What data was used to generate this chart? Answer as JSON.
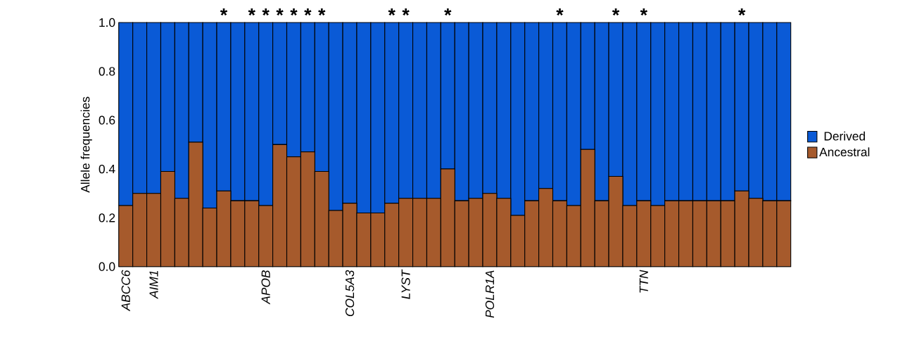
{
  "chart_data": {
    "type": "bar",
    "stacked": true,
    "ylabel": "Allele frequencies",
    "categories": [
      "ABCC6",
      null,
      "AIM1",
      null,
      null,
      null,
      null,
      null,
      null,
      null,
      "APOB",
      null,
      null,
      null,
      null,
      null,
      "COL5A3",
      null,
      null,
      null,
      "LYST",
      null,
      null,
      null,
      null,
      null,
      "POLR1A",
      null,
      null,
      null,
      null,
      null,
      null,
      null,
      null,
      null,
      null,
      "TTN",
      null,
      null,
      null,
      null,
      null,
      null,
      null,
      null,
      null,
      null
    ],
    "series": [
      {
        "name": "Ancestral",
        "color": "#a65a2c",
        "values": [
          0.25,
          0.3,
          0.3,
          0.39,
          0.28,
          0.51,
          0.24,
          0.31,
          0.27,
          0.27,
          0.25,
          0.5,
          0.45,
          0.47,
          0.39,
          0.23,
          0.26,
          0.22,
          0.22,
          0.26,
          0.28,
          0.28,
          0.28,
          0.4,
          0.27,
          0.28,
          0.3,
          0.28,
          0.21,
          0.27,
          0.32,
          0.27,
          0.25,
          0.48,
          0.27,
          0.37,
          0.25,
          0.27,
          0.25,
          0.27,
          0.27,
          0.27,
          0.27,
          0.27,
          0.31,
          0.28,
          0.27,
          0.27
        ]
      },
      {
        "name": "Derived",
        "color": "#0a5ad6",
        "values": [
          0.75,
          0.7,
          0.7,
          0.61,
          0.72,
          0.49,
          0.76,
          0.69,
          0.73,
          0.73,
          0.75,
          0.5,
          0.55,
          0.53,
          0.61,
          0.77,
          0.74,
          0.78,
          0.78,
          0.74,
          0.72,
          0.72,
          0.72,
          0.6,
          0.73,
          0.72,
          0.7,
          0.72,
          0.79,
          0.73,
          0.68,
          0.73,
          0.75,
          0.52,
          0.73,
          0.63,
          0.75,
          0.73,
          0.75,
          0.73,
          0.73,
          0.73,
          0.73,
          0.73,
          0.69,
          0.72,
          0.73,
          0.73
        ],
        "value_labels": [
          null,
          null,
          null,
          null,
          null,
          null,
          null,
          "*",
          null,
          "*",
          "*",
          "*",
          "*",
          "*",
          "*",
          null,
          null,
          null,
          null,
          "*",
          "*",
          null,
          null,
          "*",
          null,
          null,
          null,
          null,
          null,
          null,
          null,
          "*",
          null,
          null,
          null,
          "*",
          null,
          "*",
          null,
          null,
          null,
          null,
          null,
          null,
          "*",
          null,
          null,
          null
        ]
      }
    ],
    "ylim": [
      0,
      1
    ],
    "yticks": [
      {
        "value": 0,
        "label": "0.0"
      },
      {
        "value": 0.2,
        "label": "0.2"
      },
      {
        "value": 0.4,
        "label": "0.4"
      },
      {
        "value": 0.6,
        "label": "0.6"
      },
      {
        "value": 0.8,
        "label": "0.8"
      },
      {
        "value": 1,
        "label": "1.0"
      }
    ],
    "legend": "right"
  }
}
